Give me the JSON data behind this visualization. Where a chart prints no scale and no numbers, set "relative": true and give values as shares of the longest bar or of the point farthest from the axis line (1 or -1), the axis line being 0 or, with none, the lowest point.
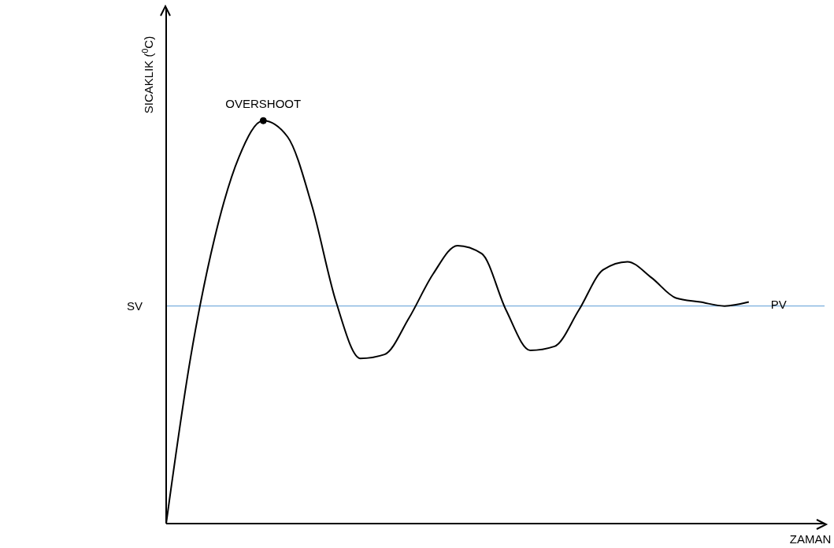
{
  "chart_data": {
    "type": "line",
    "relative": true,
    "xlabel": "ZAMAN",
    "ylabel": "SICAKLIK ($^{0}$C)",
    "categories": [
      null,
      null,
      null,
      null,
      null,
      null,
      null,
      null,
      null,
      null,
      null,
      null,
      null,
      null,
      null,
      null,
      null,
      null,
      null,
      null,
      null,
      null,
      null,
      null,
      null
    ],
    "series": [
      {
        "name": "PV",
        "color": "#000000",
        "values": [
          0,
          0.41,
          0.71,
          0.91,
          1,
          0.96,
          0.79,
          0.55,
          0.41,
          0.42,
          0.51,
          0.62,
          0.69,
          0.67,
          0.53,
          0.43,
          0.44,
          0.53,
          0.63,
          0.65,
          0.61,
          0.56,
          0.55,
          0.54,
          0.55
        ]
      }
    ],
    "ref_lines": [
      {
        "axis": "y",
        "value": 0.54,
        "label": "SV",
        "color": "#5b9bd5"
      }
    ],
    "annotations": [
      {
        "text": "OVERSHOOT",
        "y": 1
      }
    ],
    "marker": "none",
    "line_style": "solid"
  }
}
